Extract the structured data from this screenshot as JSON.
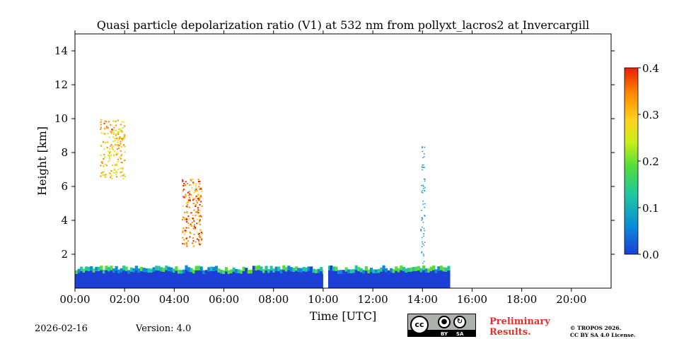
{
  "chart_data": {
    "type": "heatmap",
    "title": "Quasi particle depolarization ratio (V1) at 532 nm from pollyxt_lacros2 at Invercargill",
    "xlabel": "Time [UTC]",
    "ylabel": "Height [km]",
    "xlim": [
      0,
      21.6
    ],
    "ylim": [
      0,
      15
    ],
    "x_ticks": [
      "00:00",
      "02:00",
      "04:00",
      "06:00",
      "08:00",
      "10:00",
      "12:00",
      "14:00",
      "16:00",
      "18:00",
      "20:00"
    ],
    "y_ticks": [
      "2",
      "4",
      "6",
      "8",
      "10",
      "12",
      "14"
    ],
    "colorbar": {
      "range": [
        0.0,
        0.4
      ],
      "ticks": [
        "0.0",
        "0.1",
        "0.2",
        "0.3",
        "0.4"
      ],
      "colormap": [
        "#1c3fd6",
        "#0a8cd8",
        "#1fc7a0",
        "#52dd3c",
        "#c9ee1a",
        "#ffd21f",
        "#ff8a00",
        "#e81f05"
      ]
    },
    "features": [
      {
        "label": "boundary layer",
        "time_start": 0.0,
        "time_end": 15.1,
        "height_top_km": 1.2,
        "ratio_low": 0.02,
        "ratio_top": 0.2
      },
      {
        "label": "cirrus",
        "time_start": 1.0,
        "time_end": 2.0,
        "height_bottom_km": 6.5,
        "height_top_km": 10.0,
        "ratio": 0.3
      },
      {
        "label": "depolarizing cloud",
        "time_start": 4.3,
        "time_end": 5.1,
        "height_bottom_km": 2.5,
        "height_top_km": 6.5,
        "ratio": 0.35
      },
      {
        "label": "vertical streak",
        "time": 14.0,
        "height_bottom_km": 1.5,
        "height_top_km": 8.5,
        "ratio": 0.05
      },
      {
        "label": "no data",
        "time_start": 10.0,
        "time_end": 10.2
      },
      {
        "label": "no data",
        "time_start": 15.2,
        "time_end": 15.4
      }
    ]
  },
  "footer": {
    "date": "2026-02-16",
    "version": "Version: 4.0",
    "license_badge": {
      "text": "cc",
      "by": "BY",
      "sa": "SA"
    },
    "preliminary_line1": "Preliminary",
    "preliminary_line2": "Results.",
    "copyright_line1": "© TROPOS 2026.",
    "copyright_line2": "CC BY SA 4.0 License."
  }
}
